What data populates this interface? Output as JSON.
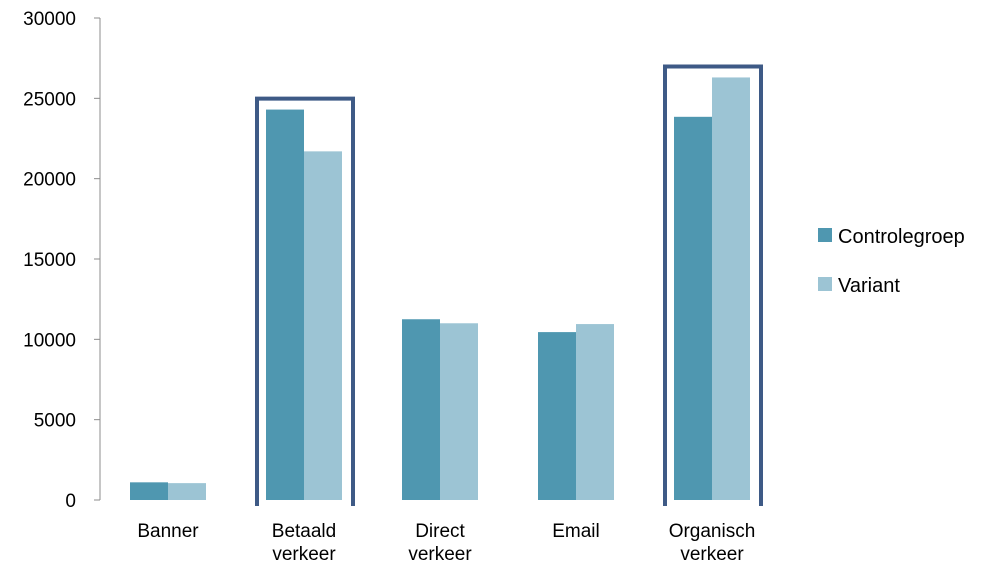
{
  "chart_data": {
    "type": "bar",
    "title": "",
    "xlabel": "",
    "ylabel": "",
    "categories": [
      "Banner",
      "Betaald verkeer",
      "Direct verkeer",
      "Email",
      "Organisch verkeer"
    ],
    "category_lines": [
      [
        "Banner"
      ],
      [
        "Betaald",
        "verkeer"
      ],
      [
        "Direct",
        "verkeer"
      ],
      [
        "Email"
      ],
      [
        "Organisch",
        "verkeer"
      ]
    ],
    "series": [
      {
        "name": "Controlegroep",
        "color": "#4f97b0",
        "values": [
          1100,
          24300,
          11250,
          10450,
          23850
        ]
      },
      {
        "name": "Variant",
        "color": "#9cc4d4",
        "values": [
          1050,
          21700,
          11000,
          10950,
          26300
        ]
      }
    ],
    "ylim": [
      0,
      30000
    ],
    "yticks": [
      0,
      5000,
      10000,
      15000,
      20000,
      25000,
      30000
    ],
    "grid": false,
    "legend_position": "right",
    "highlighted_categories": [
      "Betaald verkeer",
      "Organisch verkeer"
    ],
    "highlight_color": "#3e5a86"
  }
}
